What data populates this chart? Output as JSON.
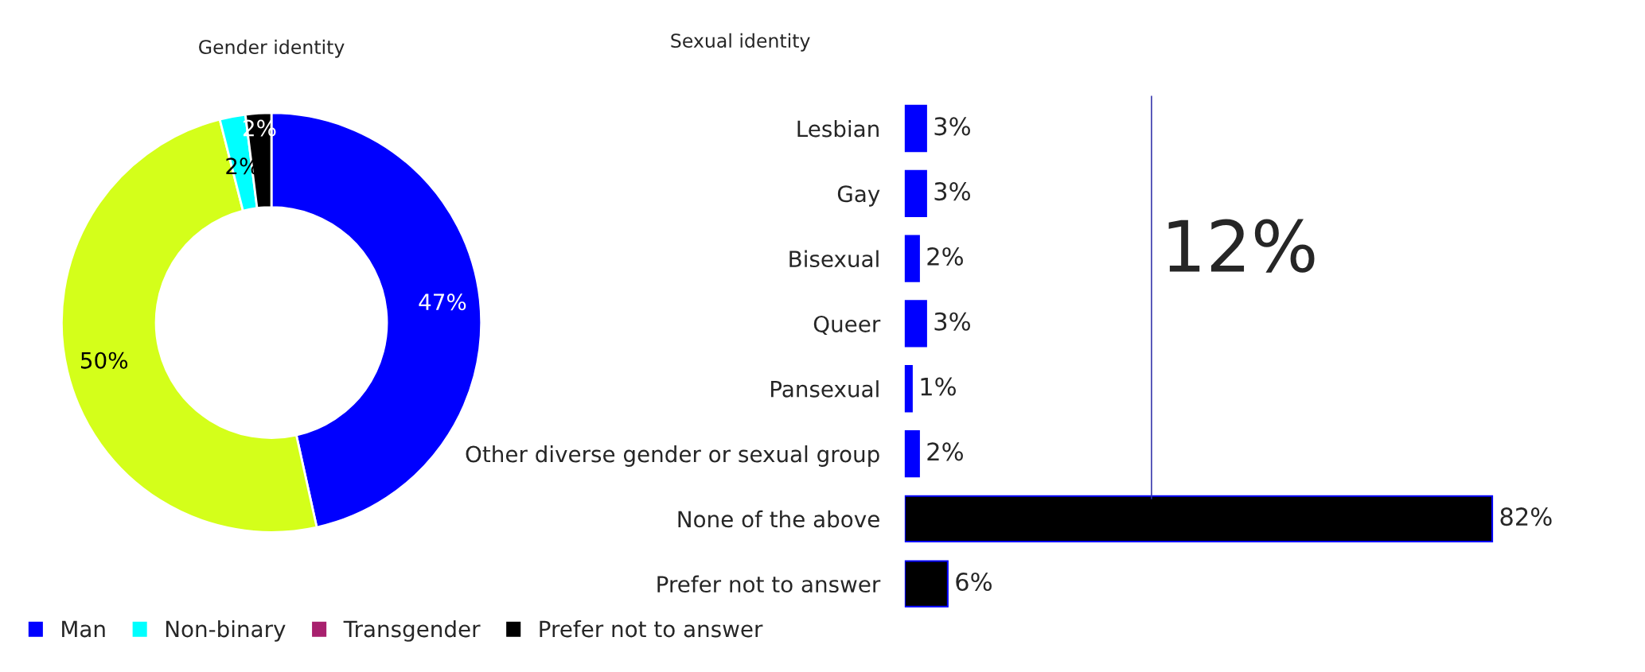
{
  "chart_data": [
    {
      "type": "donut",
      "title": "Gender identity",
      "categories": [
        "Man",
        null,
        "Non-binary",
        "Transgender",
        "Prefer not to answer"
      ],
      "values": [
        47,
        50,
        2,
        0,
        2
      ],
      "colors": [
        "#0000ff",
        "#d4ff1a",
        "#00ffff",
        "#a8206e",
        "#000000"
      ],
      "value_labels": [
        "47%",
        "50%",
        "2%",
        null,
        "2%"
      ],
      "legend": "bottom"
    },
    {
      "type": "bar",
      "orientation": "horizontal",
      "title": "Sexual identity",
      "categories": [
        "Lesbian",
        "Gay",
        "Bisexual",
        "Queer",
        "Pansexual",
        "Other diverse gender or sexual group",
        "None of the above",
        "Prefer not to answer"
      ],
      "values": [
        3,
        3,
        2,
        3,
        1,
        2,
        82,
        6
      ],
      "colors": [
        "#0000ff",
        "#0000ff",
        "#0000ff",
        "#0000ff",
        "#0000ff",
        "#0000ff",
        "#000000",
        "#000000"
      ],
      "value_labels": [
        "3%",
        "3%",
        "2%",
        "3%",
        "1%",
        "2%",
        "82%",
        "6%"
      ],
      "annotations": [
        "12%"
      ]
    }
  ]
}
